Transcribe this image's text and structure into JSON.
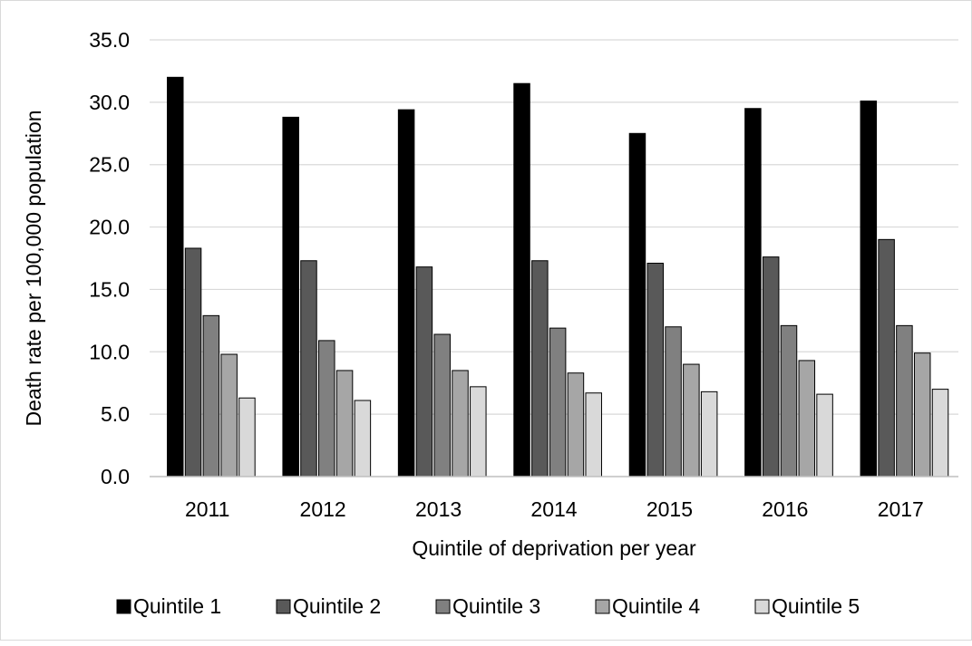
{
  "chart_data": {
    "type": "bar",
    "title": "",
    "xlabel": "Quintile of deprivation per year",
    "ylabel": "Death rate per 100,000 population",
    "ylim": [
      0,
      35
    ],
    "ytick_step": 5,
    "ytick_format": "0.0",
    "grid": true,
    "legend_position": "bottom",
    "categories": [
      "2011",
      "2012",
      "2013",
      "2014",
      "2015",
      "2016",
      "2017"
    ],
    "series": [
      {
        "name": "Quintile 1",
        "color": "#000000",
        "values": [
          32.0,
          28.8,
          29.4,
          31.5,
          27.5,
          29.5,
          30.1
        ]
      },
      {
        "name": "Quintile 2",
        "color": "#595959",
        "values": [
          18.3,
          17.3,
          16.8,
          17.3,
          17.1,
          17.6,
          19.0
        ]
      },
      {
        "name": "Quintile 3",
        "color": "#808080",
        "values": [
          12.9,
          10.9,
          11.4,
          11.9,
          12.0,
          12.1,
          12.1
        ]
      },
      {
        "name": "Quintile 4",
        "color": "#a6a6a6",
        "values": [
          9.8,
          8.5,
          8.5,
          8.3,
          9.0,
          9.3,
          9.9
        ]
      },
      {
        "name": "Quintile 5",
        "color": "#d9d9d9",
        "values": [
          6.3,
          6.1,
          7.2,
          6.7,
          6.8,
          6.6,
          7.0
        ]
      }
    ]
  }
}
